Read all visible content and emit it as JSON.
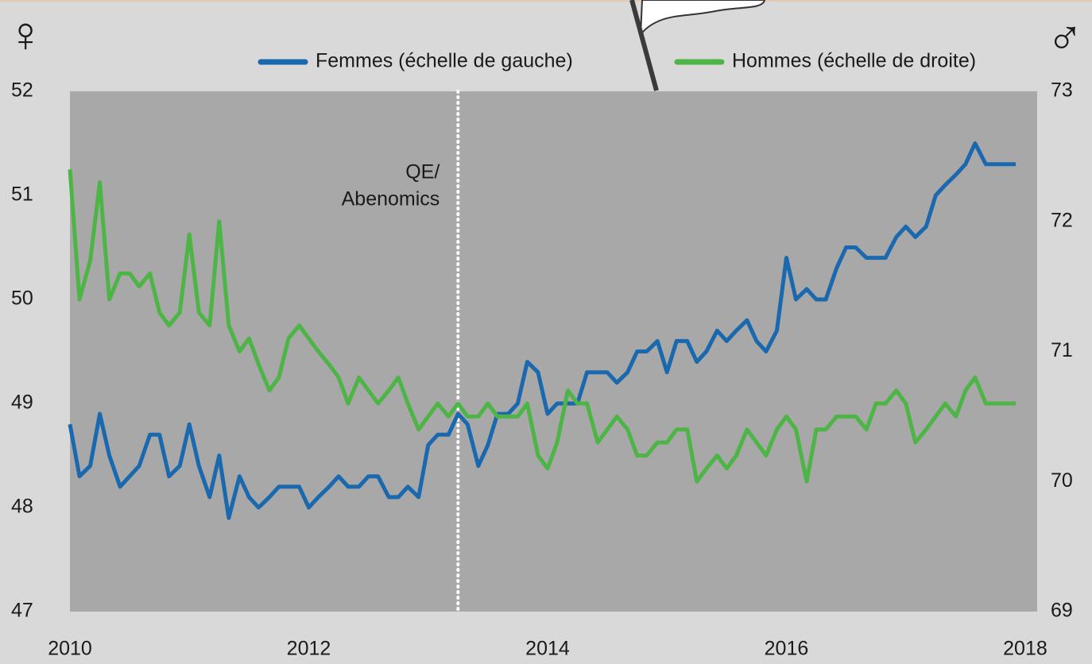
{
  "chart_data": {
    "type": "line",
    "y_symbol": "♀",
    "y2_symbol": "♂",
    "x": [
      2010,
      2010.08,
      2010.17,
      2010.25,
      2010.33,
      2010.42,
      2010.5,
      2010.58,
      2010.67,
      2010.75,
      2010.83,
      2010.92,
      2011,
      2011.08,
      2011.17,
      2011.25,
      2011.33,
      2011.42,
      2011.5,
      2011.58,
      2011.67,
      2011.75,
      2011.83,
      2011.92,
      2012,
      2012.08,
      2012.17,
      2012.25,
      2012.33,
      2012.42,
      2012.5,
      2012.58,
      2012.67,
      2012.75,
      2012.83,
      2012.92,
      2013,
      2013.08,
      2013.17,
      2013.25,
      2013.33,
      2013.42,
      2013.5,
      2013.58,
      2013.67,
      2013.75,
      2013.83,
      2013.92,
      2014,
      2014.08,
      2014.17,
      2014.25,
      2014.33,
      2014.42,
      2014.5,
      2014.58,
      2014.67,
      2014.75,
      2014.83,
      2014.92,
      2015,
      2015.08,
      2015.17,
      2015.25,
      2015.33,
      2015.42,
      2015.5,
      2015.58,
      2015.67,
      2015.75,
      2015.83,
      2015.92,
      2016,
      2016.08,
      2016.17,
      2016.25,
      2016.33,
      2016.42,
      2016.5,
      2016.58,
      2016.67,
      2016.75,
      2016.83,
      2016.92,
      2017,
      2017.08,
      2017.17,
      2017.25,
      2017.33,
      2017.42,
      2017.5,
      2017.58,
      2017.67,
      2017.75,
      2017.83,
      2017.92
    ],
    "series": [
      {
        "name": "Femmes (échelle de gauche)",
        "color": "#1a68ad",
        "axis": "y",
        "values": [
          48.8,
          48.3,
          48.4,
          48.9,
          48.5,
          48.2,
          48.3,
          48.4,
          48.7,
          48.7,
          48.3,
          48.4,
          48.8,
          48.4,
          48.1,
          48.5,
          47.9,
          48.3,
          48.1,
          48.0,
          48.1,
          48.2,
          48.2,
          48.2,
          48.0,
          48.1,
          48.2,
          48.3,
          48.2,
          48.2,
          48.3,
          48.3,
          48.1,
          48.1,
          48.2,
          48.1,
          48.6,
          48.7,
          48.7,
          48.9,
          48.8,
          48.4,
          48.6,
          48.9,
          48.9,
          49.0,
          49.4,
          49.3,
          48.9,
          49.0,
          49.0,
          49.0,
          49.3,
          49.3,
          49.3,
          49.2,
          49.3,
          49.5,
          49.5,
          49.6,
          49.3,
          49.6,
          49.6,
          49.4,
          49.5,
          49.7,
          49.6,
          49.7,
          49.8,
          49.6,
          49.5,
          49.7,
          50.4,
          50.0,
          50.1,
          50.0,
          50.0,
          50.3,
          50.5,
          50.5,
          50.4,
          50.4,
          50.4,
          50.6,
          50.7,
          50.6,
          50.7,
          51.0,
          51.1,
          51.2,
          51.3,
          51.5,
          51.3,
          51.3,
          51.3,
          51.3
        ]
      },
      {
        "name": "Hommes (échelle de droite)",
        "color": "#4db546",
        "axis": "y2",
        "values": [
          72.4,
          71.4,
          71.7,
          72.3,
          71.4,
          71.6,
          71.6,
          71.5,
          71.6,
          71.3,
          71.2,
          71.3,
          71.9,
          71.3,
          71.2,
          72.0,
          71.2,
          71.0,
          71.1,
          70.9,
          70.7,
          70.8,
          71.1,
          71.2,
          71.1,
          71.0,
          70.9,
          70.8,
          70.6,
          70.8,
          70.7,
          70.6,
          70.7,
          70.8,
          70.6,
          70.4,
          70.5,
          70.6,
          70.5,
          70.6,
          70.5,
          70.5,
          70.6,
          70.5,
          70.5,
          70.5,
          70.6,
          70.2,
          70.1,
          70.3,
          70.7,
          70.6,
          70.6,
          70.3,
          70.4,
          70.5,
          70.4,
          70.2,
          70.2,
          70.3,
          70.3,
          70.4,
          70.4,
          70.0,
          70.1,
          70.2,
          70.1,
          70.2,
          70.4,
          70.3,
          70.2,
          70.4,
          70.5,
          70.4,
          70.0,
          70.4,
          70.4,
          70.5,
          70.5,
          70.5,
          70.4,
          70.6,
          70.6,
          70.7,
          70.6,
          70.3,
          70.4,
          70.5,
          70.6,
          70.5,
          70.7,
          70.8,
          70.6,
          70.6,
          70.6,
          70.6
        ]
      }
    ],
    "xlim": [
      2010,
      2018.1
    ],
    "xticks": [
      2010,
      2012,
      2014,
      2016,
      2018
    ],
    "ylim": [
      47,
      52
    ],
    "yticks": [
      47,
      48,
      49,
      50,
      51,
      52
    ],
    "y2lim": [
      69,
      73
    ],
    "y2ticks": [
      69,
      70,
      71,
      72,
      73
    ],
    "vline": {
      "x": 2013.25,
      "label": [
        "QE/",
        "Abenomics"
      ]
    }
  }
}
